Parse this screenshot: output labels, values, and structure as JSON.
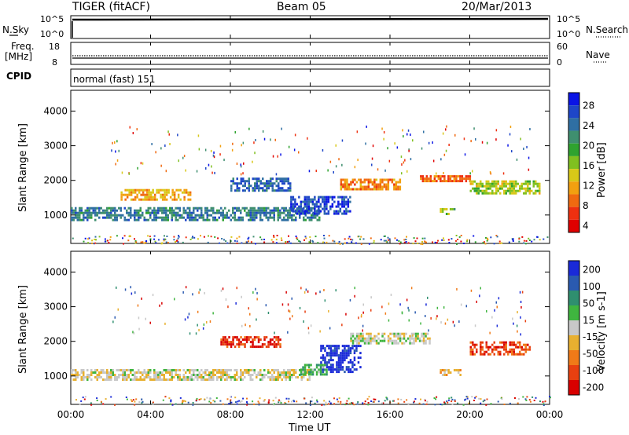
{
  "header": {
    "title_left": "TIGER (fitACF)",
    "title_center": "Beam 05",
    "title_right": "20/Mar/2013"
  },
  "aux_panels": {
    "nsky_label": "N.Sky",
    "nsky_ticks": [
      "10^5",
      "10^0"
    ],
    "nsearch_label": "N.Search",
    "nsearch_ticks": [
      "10^5",
      "10^0"
    ],
    "freq_label": "Freq.",
    "freq_unit": "[MHz]",
    "freq_ticks": [
      "18",
      "8"
    ],
    "nave_label": "Nave",
    "nave_ticks": [
      "60",
      "0"
    ],
    "cpid_label": "CPID",
    "cpid_value": "normal (fast) 151"
  },
  "x_axis": {
    "label": "Time UT",
    "ticks": [
      "00:00",
      "04:00",
      "08:00",
      "12:00",
      "16:00",
      "20:00",
      "00:00"
    ]
  },
  "panels": [
    {
      "name": "power",
      "ylabel": "Slant Range [km]",
      "yticks": [
        "4000",
        "3000",
        "2000",
        "1000"
      ],
      "colorbar_label": "Power [dB]",
      "colorbar_ticks": [
        "28",
        "24",
        "20",
        "16",
        "12",
        "8",
        "4"
      ],
      "colors": [
        "#0a14e6",
        "#1e46c8",
        "#2f6fa3",
        "#3f8f6f",
        "#2fa32f",
        "#80c020",
        "#d8c818",
        "#f2a010",
        "#f06a10",
        "#ee3010",
        "#e00000"
      ]
    },
    {
      "name": "velocity",
      "ylabel": "Slant Range [km]",
      "yticks": [
        "4000",
        "3000",
        "2000",
        "1000"
      ],
      "colorbar_label": "Velocity [m s-1]",
      "colorbar_ticks": [
        "200",
        "100",
        "50",
        "15",
        "-15",
        "-50",
        "-100",
        "-200"
      ],
      "colors": [
        "#1a2ad8",
        "#2a5ab0",
        "#2f8f6f",
        "#3fb53f",
        "#c8c8c8",
        "#e8b030",
        "#f07a18",
        "#e84010",
        "#d80000"
      ]
    }
  ],
  "chart_data": [
    {
      "type": "heatmap",
      "title": "Power [dB]",
      "xlabel": "Time UT",
      "ylabel": "Slant Range [km]",
      "xlim": [
        "00:00",
        "24:00"
      ],
      "ylim": [
        180,
        4600
      ],
      "colorbar_range": [
        0,
        30
      ],
      "regions": [
        {
          "t_start": 0.0,
          "t_end": 12.5,
          "r_center": 1050,
          "r_halfwidth": 180,
          "value": 22
        },
        {
          "t_start": 2.5,
          "t_end": 6.0,
          "r_center": 1600,
          "r_halfwidth": 150,
          "value": 10
        },
        {
          "t_start": 8.0,
          "t_end": 11.0,
          "r_center": 1900,
          "r_halfwidth": 180,
          "value": 24
        },
        {
          "t_start": 11.0,
          "t_end": 14.0,
          "r_center": 1300,
          "r_halfwidth": 250,
          "value": 26
        },
        {
          "t_start": 13.5,
          "t_end": 16.5,
          "r_center": 1900,
          "r_halfwidth": 150,
          "value": 8
        },
        {
          "t_start": 17.5,
          "t_end": 20.0,
          "r_center": 2050,
          "r_halfwidth": 100,
          "value": 6
        },
        {
          "t_start": 20.0,
          "t_end": 23.5,
          "r_center": 1800,
          "r_halfwidth": 200,
          "value": 14
        },
        {
          "t_start": 18.5,
          "t_end": 19.2,
          "r_center": 1100,
          "r_halfwidth": 100,
          "value": 16
        }
      ]
    },
    {
      "type": "heatmap",
      "title": "Velocity [m s-1]",
      "xlabel": "Time UT",
      "ylabel": "Slant Range [km]",
      "xlim": [
        "00:00",
        "24:00"
      ],
      "ylim": [
        180,
        4600
      ],
      "colorbar_range": [
        -200,
        200
      ],
      "regions": [
        {
          "t_start": 0.0,
          "t_end": 12.0,
          "r_center": 1050,
          "r_halfwidth": 150,
          "value": -10
        },
        {
          "t_start": 7.5,
          "t_end": 10.5,
          "r_center": 2000,
          "r_halfwidth": 150,
          "value": -150
        },
        {
          "t_start": 12.5,
          "t_end": 14.5,
          "r_center": 1500,
          "r_halfwidth": 400,
          "value": 180
        },
        {
          "t_start": 11.5,
          "t_end": 12.8,
          "r_center": 1200,
          "r_halfwidth": 150,
          "value": 60
        },
        {
          "t_start": 14.0,
          "t_end": 18.0,
          "r_center": 2100,
          "r_halfwidth": 150,
          "value": 0
        },
        {
          "t_start": 20.0,
          "t_end": 23.0,
          "r_center": 1800,
          "r_halfwidth": 200,
          "value": -130
        },
        {
          "t_start": 18.5,
          "t_end": 19.5,
          "r_center": 1100,
          "r_halfwidth": 100,
          "value": -40
        }
      ]
    }
  ]
}
